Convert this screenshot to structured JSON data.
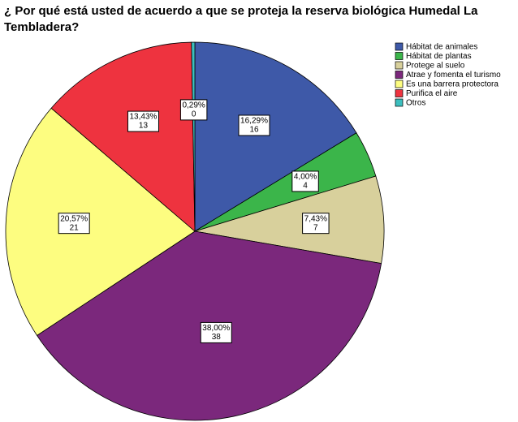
{
  "chart_data": {
    "type": "pie",
    "title": "¿ Por qué está usted de acuerdo a que se proteja la reserva biológica Humedal La Tembladera?",
    "categories": [
      "Hábitat de animales",
      "Hábitat de plantas",
      "Protege al suelo",
      "Atrae y fomenta el turismo",
      "Es una barrera protectora",
      "Purifica el aire",
      "Otros"
    ],
    "values": [
      16.29,
      4.0,
      7.43,
      38.0,
      20.57,
      13.43,
      0.29
    ],
    "value_labels": [
      "16,29%",
      "4,00%",
      "7,43%",
      "38,00%",
      "20,57%",
      "13,43%",
      "0,29%"
    ],
    "counts": [
      16,
      4,
      7,
      38,
      21,
      13,
      0
    ],
    "colors": [
      "#3e59a8",
      "#3bb54a",
      "#d8d09c",
      "#7b287c",
      "#fdfd80",
      "#ee333f",
      "#3cbfbf"
    ],
    "legend": "top-right"
  }
}
